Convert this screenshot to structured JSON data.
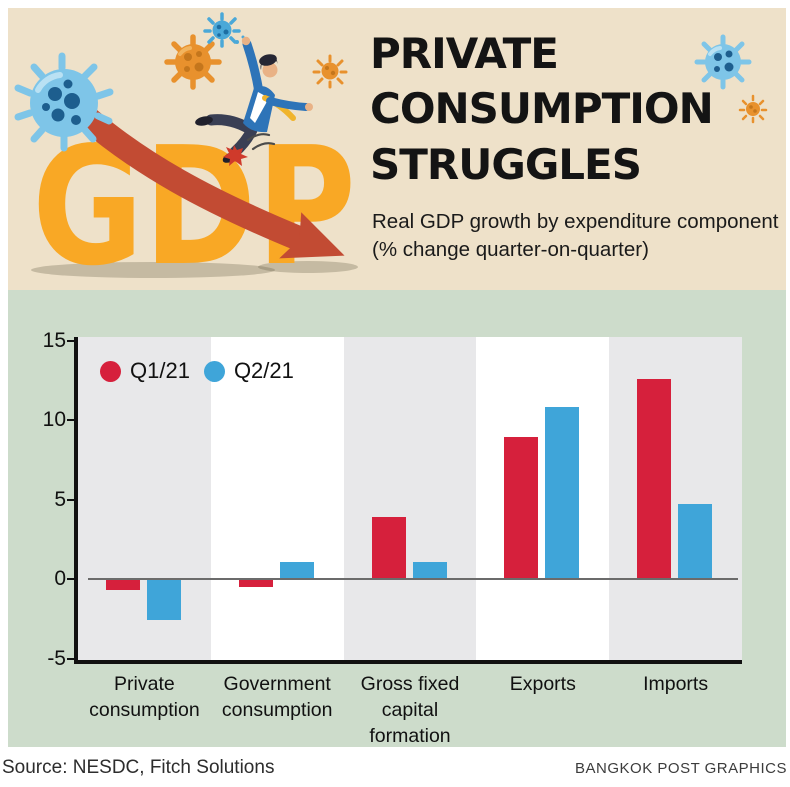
{
  "header": {
    "title": "PRIVATE CONSUMPTION STRUGGLES",
    "subtitle": "Real GDP growth by expenditure component (% change quarter-on-quarter)",
    "gdp_text": "GDP",
    "illustration_elements": [
      "large-blue-coronavirus-icon",
      "orange-coronavirus-icon",
      "small-blue-coronavirus-icon",
      "small-orange-coronavirus-icon",
      "falling-businessman",
      "declining-red-arrow-icon",
      "blue-coronavirus-top-right-icon",
      "small-orange-coronavirus-right-icon",
      "red-coronavirus-underfoot-icon"
    ]
  },
  "chart_data": {
    "type": "bar",
    "title": "Real GDP growth by expenditure component (% change quarter-on-quarter)",
    "categories": [
      "Private consumption",
      "Government consumption",
      "Gross fixed capital formation",
      "Exports",
      "Imports"
    ],
    "category_label_lines": [
      [
        "Private",
        "consumption"
      ],
      [
        "Government",
        "consumption"
      ],
      [
        "Gross fixed",
        "capital formation"
      ],
      [
        "Exports"
      ],
      [
        "Imports"
      ]
    ],
    "series": [
      {
        "name": "Q1/21",
        "color": "#d6203c",
        "values": [
          -0.7,
          -0.5,
          3.9,
          8.9,
          12.6
        ]
      },
      {
        "name": "Q2/21",
        "color": "#3fa5d9",
        "values": [
          -2.6,
          1.1,
          1.1,
          10.8,
          4.7
        ]
      }
    ],
    "ylim": [
      -5,
      15
    ],
    "yticks": [
      15,
      10,
      5,
      0,
      -5
    ],
    "grid": false,
    "legend_position": "top-left",
    "band_colors": [
      "#e8e8ea",
      "#ffffff"
    ]
  },
  "footer": {
    "source": "Source: NESDC, Fitch Solutions",
    "credit": "BANGKOK POST GRAPHICS"
  },
  "colors": {
    "header_background": "#eee1c9",
    "chart_background": "#cddccb",
    "q1_red": "#d6203c",
    "q2_blue": "#3fa5d9",
    "gdp_orange": "#f9a825",
    "arrow_red": "#c24b33",
    "axis_black": "#111111"
  }
}
